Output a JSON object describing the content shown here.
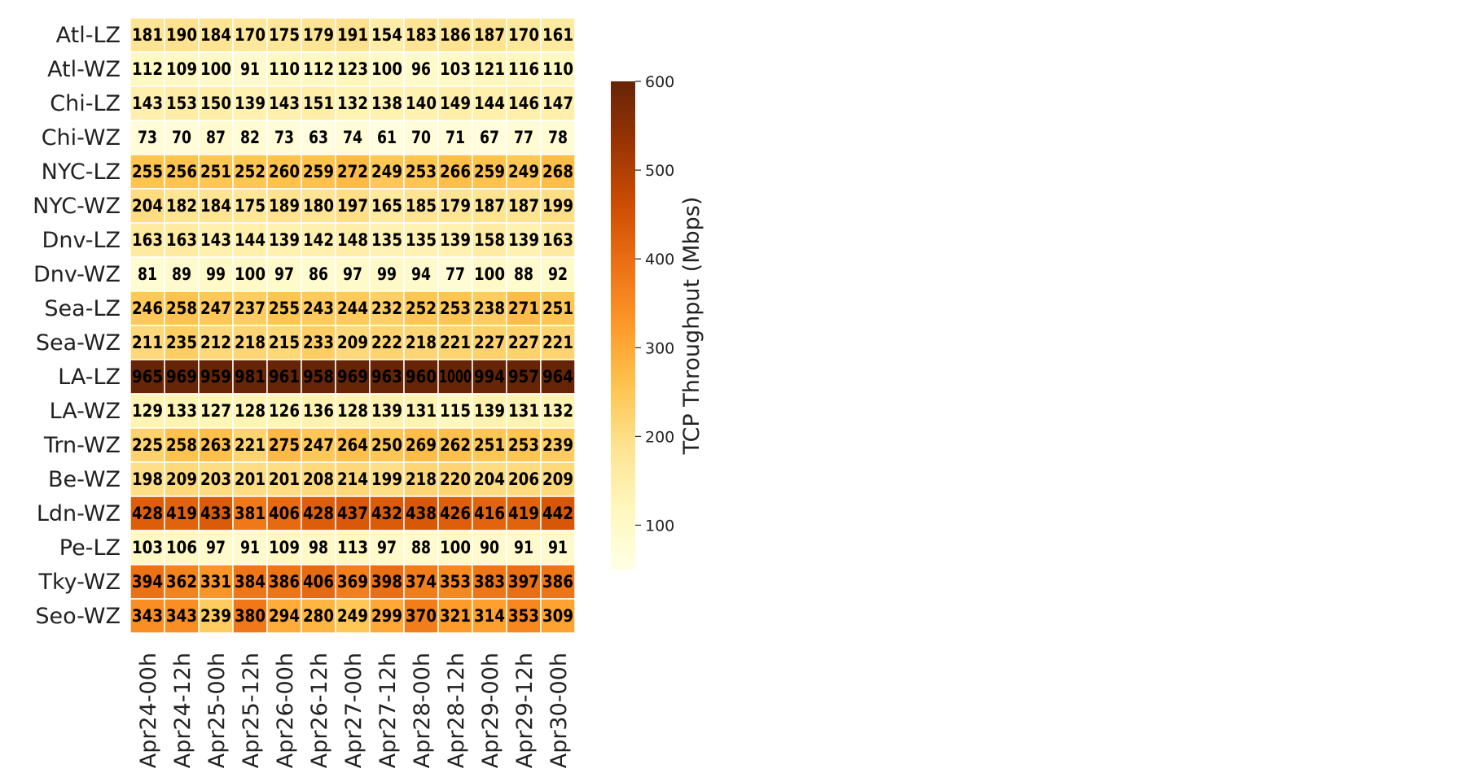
{
  "chart_data": {
    "type": "heatmap",
    "rows": [
      "Atl-LZ",
      "Atl-WZ",
      "Chi-LZ",
      "Chi-WZ",
      "NYC-LZ",
      "NYC-WZ",
      "Dnv-LZ",
      "Dnv-WZ",
      "Sea-LZ",
      "Sea-WZ",
      "LA-LZ",
      "LA-WZ",
      "Trn-WZ",
      "Be-WZ",
      "Ldn-WZ",
      "Pe-LZ",
      "Tky-WZ",
      "Seo-WZ"
    ],
    "columns": [
      "Apr24-00h",
      "Apr24-12h",
      "Apr25-00h",
      "Apr25-12h",
      "Apr26-00h",
      "Apr26-12h",
      "Apr27-00h",
      "Apr27-12h",
      "Apr28-00h",
      "Apr28-12h",
      "Apr29-00h",
      "Apr29-12h",
      "Apr30-00h"
    ],
    "values": [
      [
        181,
        190,
        184,
        170,
        175,
        179,
        191,
        154,
        183,
        186,
        187,
        170,
        161
      ],
      [
        112,
        109,
        100,
        91,
        110,
        112,
        123,
        100,
        96,
        103,
        121,
        116,
        110
      ],
      [
        143,
        153,
        150,
        139,
        143,
        151,
        132,
        138,
        140,
        149,
        144,
        146,
        147
      ],
      [
        73,
        70,
        87,
        82,
        73,
        63,
        74,
        61,
        70,
        71,
        67,
        77,
        78
      ],
      [
        255,
        256,
        251,
        252,
        260,
        259,
        272,
        249,
        253,
        266,
        259,
        249,
        268
      ],
      [
        204,
        182,
        184,
        175,
        189,
        180,
        197,
        165,
        185,
        179,
        187,
        187,
        199
      ],
      [
        163,
        163,
        143,
        144,
        139,
        142,
        148,
        135,
        135,
        139,
        158,
        139,
        163
      ],
      [
        81,
        89,
        99,
        100,
        97,
        86,
        97,
        99,
        94,
        77,
        100,
        88,
        92
      ],
      [
        246,
        258,
        247,
        237,
        255,
        243,
        244,
        232,
        252,
        253,
        238,
        271,
        251
      ],
      [
        211,
        235,
        212,
        218,
        215,
        233,
        209,
        222,
        218,
        221,
        227,
        227,
        221
      ],
      [
        965,
        969,
        959,
        981,
        961,
        958,
        969,
        963,
        960,
        1000,
        994,
        957,
        964
      ],
      [
        129,
        133,
        127,
        128,
        126,
        136,
        128,
        139,
        131,
        115,
        139,
        131,
        132
      ],
      [
        225,
        258,
        263,
        221,
        275,
        247,
        264,
        250,
        269,
        262,
        251,
        253,
        239
      ],
      [
        198,
        209,
        203,
        201,
        201,
        208,
        214,
        199,
        218,
        220,
        204,
        206,
        209
      ],
      [
        428,
        419,
        433,
        381,
        406,
        428,
        437,
        432,
        438,
        426,
        416,
        419,
        442
      ],
      [
        103,
        106,
        97,
        91,
        109,
        98,
        113,
        97,
        88,
        100,
        90,
        91,
        91
      ],
      [
        394,
        362,
        331,
        384,
        386,
        406,
        369,
        398,
        374,
        353,
        383,
        397,
        386
      ],
      [
        343,
        343,
        239,
        380,
        294,
        280,
        249,
        299,
        370,
        321,
        314,
        353,
        309
      ]
    ],
    "colorbar": {
      "label": "TCP Throughput (Mbps)",
      "range": [
        50,
        600
      ],
      "ticks": [
        100,
        200,
        300,
        400,
        500,
        600
      ],
      "colormap": "YlOrBr"
    }
  }
}
